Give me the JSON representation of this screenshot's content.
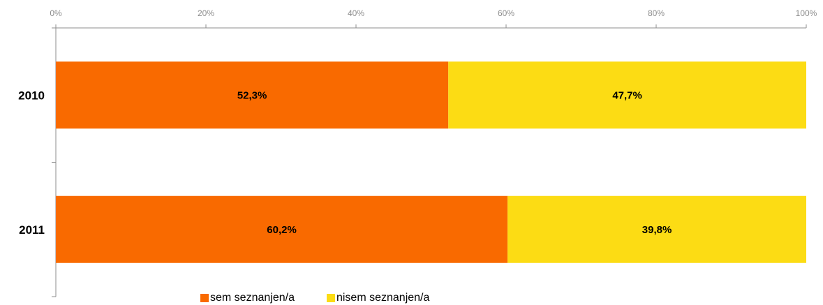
{
  "chart_data": {
    "type": "bar",
    "orientation": "horizontal",
    "stacked": true,
    "categories": [
      "2010",
      "2011"
    ],
    "series": [
      {
        "name": "sem seznanjen/a",
        "values": [
          52.3,
          60.2
        ],
        "labels": [
          "52,3%",
          "60,2%"
        ],
        "color": "#F96A00"
      },
      {
        "name": "nisem seznanjen/a",
        "values": [
          47.7,
          39.8
        ],
        "labels": [
          "47,7%",
          "39,8%"
        ],
        "color": "#FCDC14"
      }
    ],
    "xlim": [
      0,
      100
    ],
    "xticks": [
      "0%",
      "20%",
      "40%",
      "60%",
      "80%",
      "100%"
    ],
    "x_axis_position": "top",
    "grid": false,
    "legend_position": "bottom",
    "title": "",
    "xlabel": "",
    "ylabel": ""
  }
}
